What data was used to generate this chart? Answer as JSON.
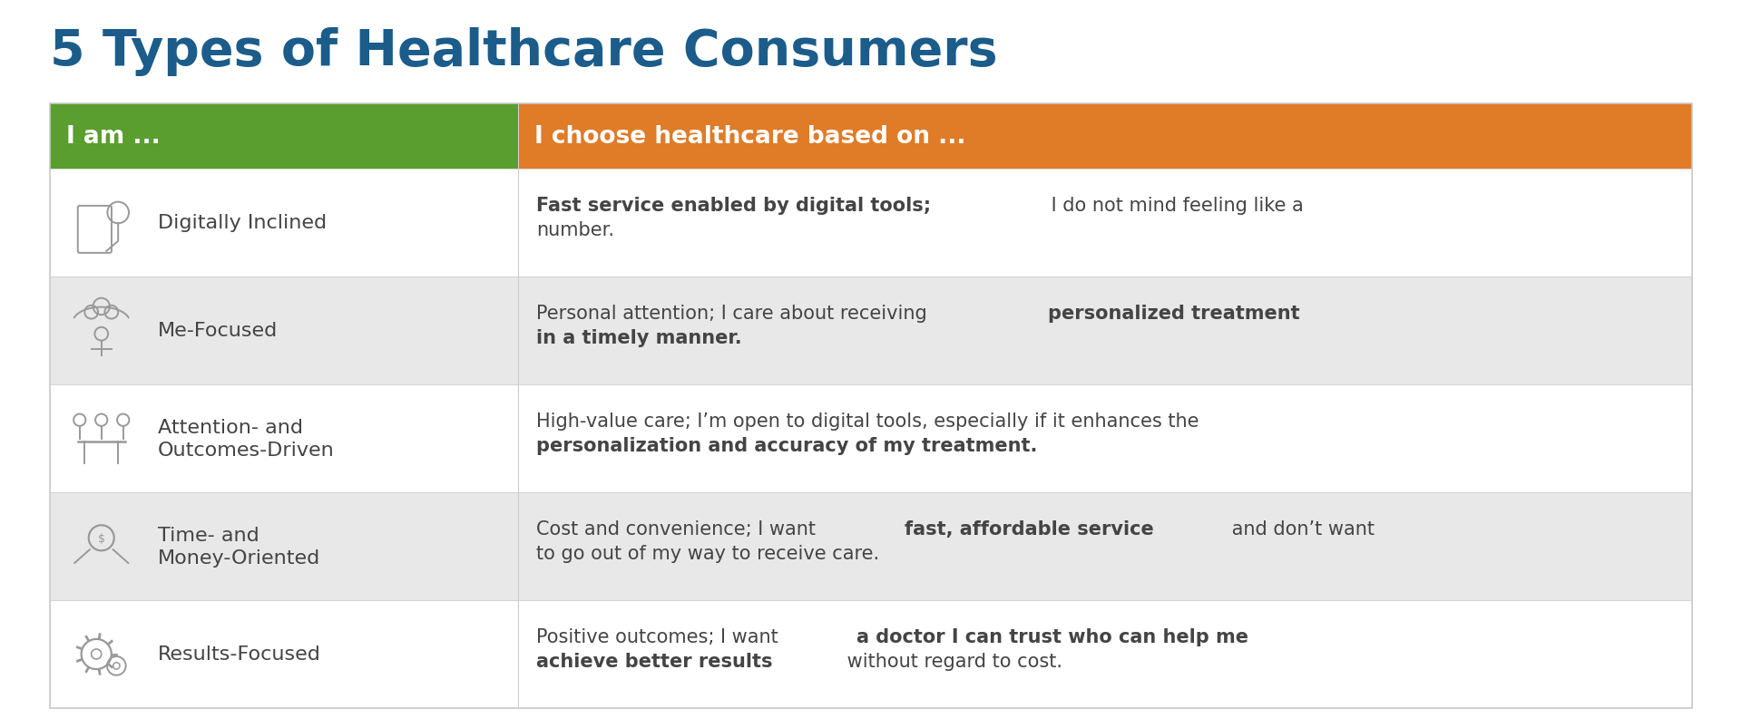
{
  "title": "5 Types of Healthcare Consumers",
  "title_color": "#1b5c8a",
  "title_fontsize": 40,
  "background_color": "#ffffff",
  "col1_header": "I am ...",
  "col2_header": "I choose healthcare based on ...",
  "col1_header_bg": "#5a9e2f",
  "col2_header_bg": "#e07b28",
  "header_text_color": "#ffffff",
  "header_fontsize": 19,
  "row_bg_colors": [
    "#ffffff",
    "#e8e8e8"
  ],
  "border_color": "#cccccc",
  "icon_color": "#999999",
  "name_fontsize": 16,
  "desc_fontsize": 15,
  "name_color": "#444444",
  "desc_color": "#444444",
  "rows": [
    {
      "name": "Digitally Inclined",
      "segments": [
        {
          "text": "Fast service enabled by digital tools;",
          "bold": true
        },
        {
          "text": " I do not mind feeling like a\nnumber.",
          "bold": false
        }
      ]
    },
    {
      "name": "Me-Focused",
      "segments": [
        {
          "text": "Personal attention; I care about receiving ",
          "bold": false
        },
        {
          "text": "personalized treatment\nin a timely manner.",
          "bold": true
        }
      ]
    },
    {
      "name": "Attention- and\nOutcomes-Driven",
      "segments": [
        {
          "text": "High-value care; I’m open to digital tools, especially if it enhances the\n",
          "bold": false
        },
        {
          "text": "personalization and accuracy of my treatment.",
          "bold": true
        }
      ]
    },
    {
      "name": "Time- and\nMoney-Oriented",
      "segments": [
        {
          "text": "Cost and convenience; I want ",
          "bold": false
        },
        {
          "text": "fast, affordable service",
          "bold": true
        },
        {
          "text": " and don’t want\nto go out of my way to receive care.",
          "bold": false
        }
      ]
    },
    {
      "name": "Results-Focused",
      "segments": [
        {
          "text": "Positive outcomes; I want ",
          "bold": false
        },
        {
          "text": "a doctor I can trust who can help me\nachieve better results",
          "bold": true
        },
        {
          "text": " without regard to cost.",
          "bold": false
        }
      ]
    }
  ]
}
